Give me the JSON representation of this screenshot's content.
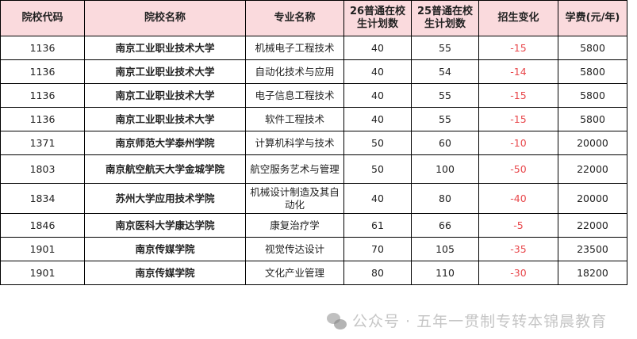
{
  "table": {
    "headers": [
      "院校代码",
      "院校名称",
      "专业名称",
      "26普通在校生计划数",
      "25普通在校生计划数",
      "招生变化",
      "学费(元/年)"
    ],
    "rows": [
      [
        "1136",
        "南京工业职业技术大学",
        "机械电子工程技术",
        "40",
        "55",
        "-15",
        "5800"
      ],
      [
        "1136",
        "南京工业职业技术大学",
        "自动化技术与应用",
        "40",
        "54",
        "-14",
        "5800"
      ],
      [
        "1136",
        "南京工业职业技术大学",
        "电子信息工程技术",
        "40",
        "55",
        "-15",
        "5800"
      ],
      [
        "1136",
        "南京工业职业技术大学",
        "软件工程技术",
        "40",
        "55",
        "-15",
        "5800"
      ],
      [
        "1371",
        "南京师范大学泰州学院",
        "计算机科学与技术",
        "50",
        "60",
        "-10",
        "20000"
      ],
      [
        "1803",
        "南京航空航天大学金城学院",
        "航空服务艺术与管理",
        "50",
        "100",
        "-50",
        "22000"
      ],
      [
        "1834",
        "苏州大学应用技术学院",
        "机械设计制造及其自动化",
        "40",
        "80",
        "-40",
        "20000"
      ],
      [
        "1846",
        "南京医科大学康达学院",
        "康复治疗学",
        "61",
        "66",
        "-5",
        "22000"
      ],
      [
        "1901",
        "南京传媒学院",
        "视觉传达设计",
        "70",
        "105",
        "-35",
        "23500"
      ],
      [
        "1901",
        "南京传媒学院",
        "文化产业管理",
        "80",
        "110",
        "-30",
        "18200"
      ]
    ]
  },
  "watermark": {
    "text": "公众号 · 五年一贯制专转本锦晨教育",
    "icon": "wechat-icon"
  },
  "colors": {
    "header_bg": "#fadadd",
    "change_red": "#e8474b"
  }
}
